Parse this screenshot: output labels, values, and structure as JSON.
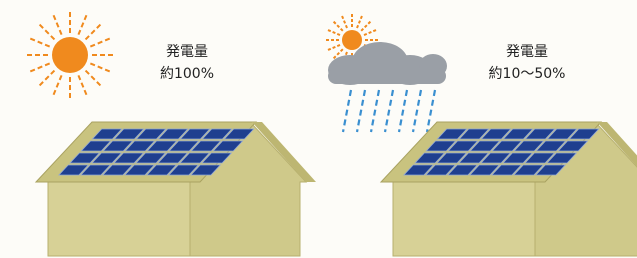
{
  "panels": [
    {
      "label": "発電量",
      "value": "約100%"
    },
    {
      "label": "発電量",
      "value": "約10〜50%"
    }
  ]
}
